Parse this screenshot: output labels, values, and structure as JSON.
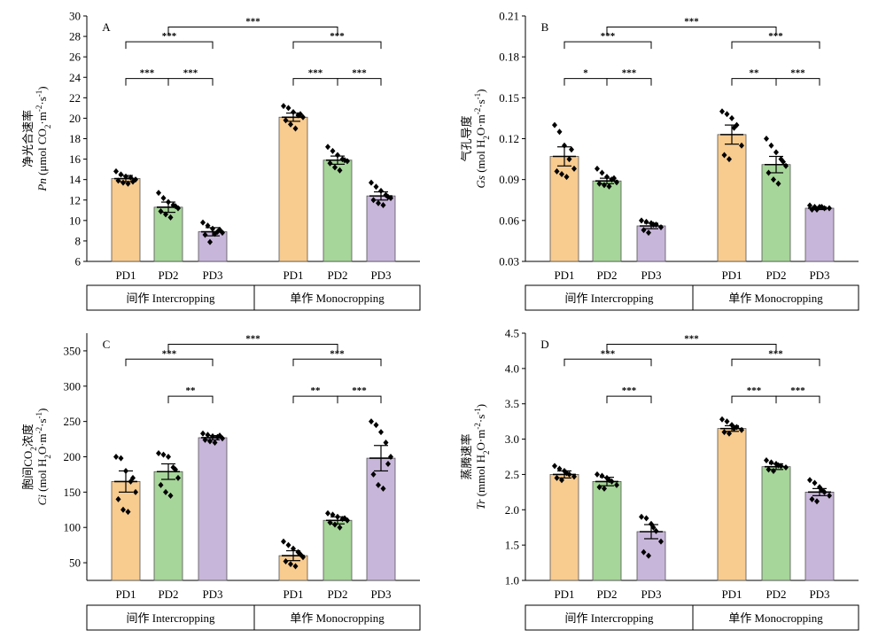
{
  "chart_data": [
    {
      "type": "bar",
      "panel_label": "A",
      "ylabel_cn": "净光合速率",
      "ylabel_sym": "Pn",
      "ylabel_unit": " (μmol CO",
      "ylabel_unit2": "·m",
      "ylabel_unit3": "·s",
      "ylabel_unit4": ")",
      "ylim": [
        6,
        30
      ],
      "yticks": [
        6,
        8,
        10,
        12,
        14,
        16,
        18,
        20,
        22,
        24,
        26,
        28,
        30
      ],
      "ytick_labels": [
        "6",
        "8",
        "10",
        "12",
        "14",
        "16",
        "18",
        "20",
        "22",
        "24",
        "26",
        "28",
        "30"
      ],
      "groups": [
        {
          "label": "间作 Intercropping",
          "bars": [
            {
              "category": "PD1",
              "value": 14.1,
              "err": 0.3,
              "color": "#f8cb8f",
              "points": [
                14.8,
                14.5,
                14.3,
                14.2,
                14.0,
                13.9,
                13.7,
                13.6,
                13.8
              ]
            },
            {
              "category": "PD2",
              "value": 11.3,
              "err": 0.5,
              "color": "#a6d699",
              "points": [
                12.7,
                12.2,
                11.8,
                11.5,
                11.2,
                10.9,
                10.6,
                10.3,
                11.4
              ]
            },
            {
              "category": "PD3",
              "value": 8.9,
              "err": 0.4,
              "color": "#c8b6da",
              "points": [
                9.8,
                9.5,
                9.2,
                8.9,
                8.8,
                8.6,
                7.9,
                8.7,
                9.1
              ]
            }
          ]
        },
        {
          "label": "单作 Monocropping",
          "bars": [
            {
              "category": "PD1",
              "value": 20.1,
              "err": 0.4,
              "color": "#f8cb8f",
              "points": [
                21.2,
                21.0,
                20.6,
                20.3,
                20.1,
                19.8,
                19.4,
                19.0,
                20.4
              ]
            },
            {
              "category": "PD2",
              "value": 15.9,
              "err": 0.4,
              "color": "#a6d699",
              "points": [
                17.2,
                16.8,
                16.4,
                16.0,
                15.8,
                15.6,
                15.2,
                14.9,
                15.9
              ]
            },
            {
              "category": "PD3",
              "value": 12.4,
              "err": 0.4,
              "color": "#c8b6da",
              "points": [
                13.7,
                13.3,
                12.9,
                12.5,
                12.2,
                12.0,
                11.7,
                11.5,
                12.3
              ]
            }
          ]
        }
      ],
      "significance": [
        {
          "from": 0,
          "to": 1,
          "label": "***"
        },
        {
          "from": 1,
          "to": 2,
          "label": "***"
        },
        {
          "from": 0,
          "to": 2,
          "label": "***"
        },
        {
          "from": 3,
          "to": 4,
          "label": "***"
        },
        {
          "from": 4,
          "to": 5,
          "label": "***"
        },
        {
          "from": 3,
          "to": 5,
          "label": "***"
        },
        {
          "from": "g0",
          "to": "g1",
          "label": "***"
        }
      ]
    },
    {
      "type": "bar",
      "panel_label": "B",
      "ylabel_cn": "气孔导度",
      "ylabel_sym": "Gs",
      "ylabel_unit": " (mol H",
      "ylabel_unit2": "O·m",
      "ylabel_unit3": "·s",
      "ylabel_unit4": ")",
      "ylim": [
        0.03,
        0.21
      ],
      "yticks": [
        0.03,
        0.06,
        0.09,
        0.12,
        0.15,
        0.18,
        0.21
      ],
      "ytick_labels": [
        "0.03",
        "0.06",
        "0.09",
        "0.12",
        "0.15",
        "0.18",
        "0.21"
      ],
      "groups": [
        {
          "label": "间作 Intercropping",
          "bars": [
            {
              "category": "PD1",
              "value": 0.107,
              "err": 0.007,
              "color": "#f8cb8f",
              "points": [
                0.13,
                0.125,
                0.115,
                0.105,
                0.098,
                0.096,
                0.094,
                0.092,
                0.112
              ]
            },
            {
              "category": "PD2",
              "value": 0.089,
              "err": 0.002,
              "color": "#a6d699",
              "points": [
                0.098,
                0.095,
                0.092,
                0.09,
                0.088,
                0.087,
                0.086,
                0.085,
                0.091
              ]
            },
            {
              "category": "PD3",
              "value": 0.056,
              "err": 0.002,
              "color": "#c8b6da",
              "points": [
                0.06,
                0.059,
                0.058,
                0.057,
                0.055,
                0.053,
                0.051,
                0.057
              ]
            }
          ]
        },
        {
          "label": "单作 Monocropping",
          "bars": [
            {
              "category": "PD1",
              "value": 0.123,
              "err": 0.007,
              "color": "#f8cb8f",
              "points": [
                0.14,
                0.138,
                0.135,
                0.13,
                0.115,
                0.108,
                0.105,
                0.128
              ]
            },
            {
              "category": "PD2",
              "value": 0.101,
              "err": 0.006,
              "color": "#a6d699",
              "points": [
                0.12,
                0.115,
                0.11,
                0.105,
                0.1,
                0.095,
                0.09,
                0.087,
                0.103
              ]
            },
            {
              "category": "PD3",
              "value": 0.069,
              "err": 0.001,
              "color": "#c8b6da",
              "points": [
                0.071,
                0.07,
                0.07,
                0.069,
                0.069,
                0.068,
                0.068,
                0.07
              ]
            }
          ]
        }
      ],
      "significance": [
        {
          "from": 0,
          "to": 1,
          "label": "*"
        },
        {
          "from": 1,
          "to": 2,
          "label": "***"
        },
        {
          "from": 0,
          "to": 2,
          "label": "***"
        },
        {
          "from": 3,
          "to": 4,
          "label": "**"
        },
        {
          "from": 4,
          "to": 5,
          "label": "***"
        },
        {
          "from": 3,
          "to": 5,
          "label": "***"
        },
        {
          "from": "g0",
          "to": "g1",
          "label": "***"
        }
      ]
    },
    {
      "type": "bar",
      "panel_label": "C",
      "ylabel_cn": "胞间CO",
      "ylabel_cn2": "浓度",
      "ylabel_sym": "Ci",
      "ylabel_unit": " (mol H",
      "ylabel_unit2": "O·m",
      "ylabel_unit3": "·s",
      "ylabel_unit4": ")",
      "ylim": [
        25,
        375
      ],
      "yticks": [
        50,
        100,
        150,
        200,
        250,
        300,
        350
      ],
      "ytick_labels": [
        "50",
        "100",
        "150",
        "200",
        "250",
        "300",
        "350"
      ],
      "groups": [
        {
          "label": "间作 Intercropping",
          "bars": [
            {
              "category": "PD1",
              "value": 165,
              "err": 15,
              "color": "#f8cb8f",
              "points": [
                200,
                198,
                180,
                165,
                150,
                140,
                125,
                122,
                170
              ]
            },
            {
              "category": "PD2",
              "value": 179,
              "err": 11,
              "color": "#a6d699",
              "points": [
                205,
                203,
                200,
                185,
                170,
                160,
                150,
                145,
                182
              ]
            },
            {
              "category": "PD3",
              "value": 227,
              "err": 3,
              "color": "#c8b6da",
              "points": [
                233,
                231,
                229,
                228,
                226,
                224,
                222,
                220,
                230
              ]
            }
          ]
        },
        {
          "label": "单作 Monocropping",
          "bars": [
            {
              "category": "PD1",
              "value": 60,
              "err": 7,
              "color": "#f8cb8f",
              "points": [
                80,
                75,
                70,
                65,
                58,
                52,
                48,
                45,
                62
              ]
            },
            {
              "category": "PD2",
              "value": 110,
              "err": 5,
              "color": "#a6d699",
              "points": [
                120,
                118,
                115,
                112,
                110,
                107,
                104,
                100,
                113
              ]
            },
            {
              "category": "PD3",
              "value": 198,
              "err": 18,
              "color": "#c8b6da",
              "points": [
                250,
                245,
                235,
                220,
                200,
                175,
                160,
                155,
                190
              ]
            }
          ]
        }
      ],
      "significance": [
        {
          "from": 1,
          "to": 2,
          "label": "**"
        },
        {
          "from": 0,
          "to": 2,
          "label": "***"
        },
        {
          "from": 3,
          "to": 4,
          "label": "**"
        },
        {
          "from": 4,
          "to": 5,
          "label": "***"
        },
        {
          "from": 3,
          "to": 5,
          "label": "***"
        },
        {
          "from": "g0",
          "to": "g1",
          "label": "***"
        }
      ]
    },
    {
      "type": "bar",
      "panel_label": "D",
      "ylabel_cn": "蒸腾速率",
      "ylabel_sym": "Tr",
      "ylabel_unit": " (mmol H",
      "ylabel_unit2": "O·m",
      "ylabel_unit3": "·s",
      "ylabel_unit4": ")",
      "ylim": [
        1.0,
        4.5
      ],
      "yticks": [
        1.0,
        1.5,
        2.0,
        2.5,
        3.0,
        3.5,
        4.0,
        4.5
      ],
      "ytick_labels": [
        "1.0",
        "1.5",
        "2.0",
        "2.5",
        "3.0",
        "3.5",
        "4.0",
        "4.5"
      ],
      "groups": [
        {
          "label": "间作 Intercropping",
          "bars": [
            {
              "category": "PD1",
              "value": 2.5,
              "err": 0.05,
              "color": "#f8cb8f",
              "points": [
                2.62,
                2.58,
                2.55,
                2.5,
                2.47,
                2.45,
                2.42,
                2.52
              ]
            },
            {
              "category": "PD2",
              "value": 2.4,
              "err": 0.06,
              "color": "#a6d699",
              "points": [
                2.5,
                2.48,
                2.45,
                2.4,
                2.35,
                2.32,
                2.3,
                2.42
              ]
            },
            {
              "category": "PD3",
              "value": 1.69,
              "err": 0.1,
              "color": "#c8b6da",
              "points": [
                1.9,
                1.88,
                1.8,
                1.7,
                1.55,
                1.4,
                1.35,
                1.75
              ]
            }
          ]
        },
        {
          "label": "单作 Monocropping",
          "bars": [
            {
              "category": "PD1",
              "value": 3.15,
              "err": 0.04,
              "color": "#f8cb8f",
              "points": [
                3.28,
                3.25,
                3.2,
                3.17,
                3.13,
                3.1,
                3.08,
                3.15
              ]
            },
            {
              "category": "PD2",
              "value": 2.61,
              "err": 0.04,
              "color": "#a6d699",
              "points": [
                2.7,
                2.67,
                2.65,
                2.62,
                2.6,
                2.57,
                2.55,
                2.63
              ]
            },
            {
              "category": "PD3",
              "value": 2.25,
              "err": 0.05,
              "color": "#c8b6da",
              "points": [
                2.42,
                2.38,
                2.32,
                2.25,
                2.2,
                2.15,
                2.12,
                2.28
              ]
            }
          ]
        }
      ],
      "significance": [
        {
          "from": 1,
          "to": 2,
          "label": "***"
        },
        {
          "from": 0,
          "to": 2,
          "label": "***"
        },
        {
          "from": 3,
          "to": 4,
          "label": "***"
        },
        {
          "from": 4,
          "to": 5,
          "label": "***"
        },
        {
          "from": 3,
          "to": 5,
          "label": "***"
        },
        {
          "from": "g0",
          "to": "g1",
          "label": "***"
        }
      ]
    }
  ]
}
